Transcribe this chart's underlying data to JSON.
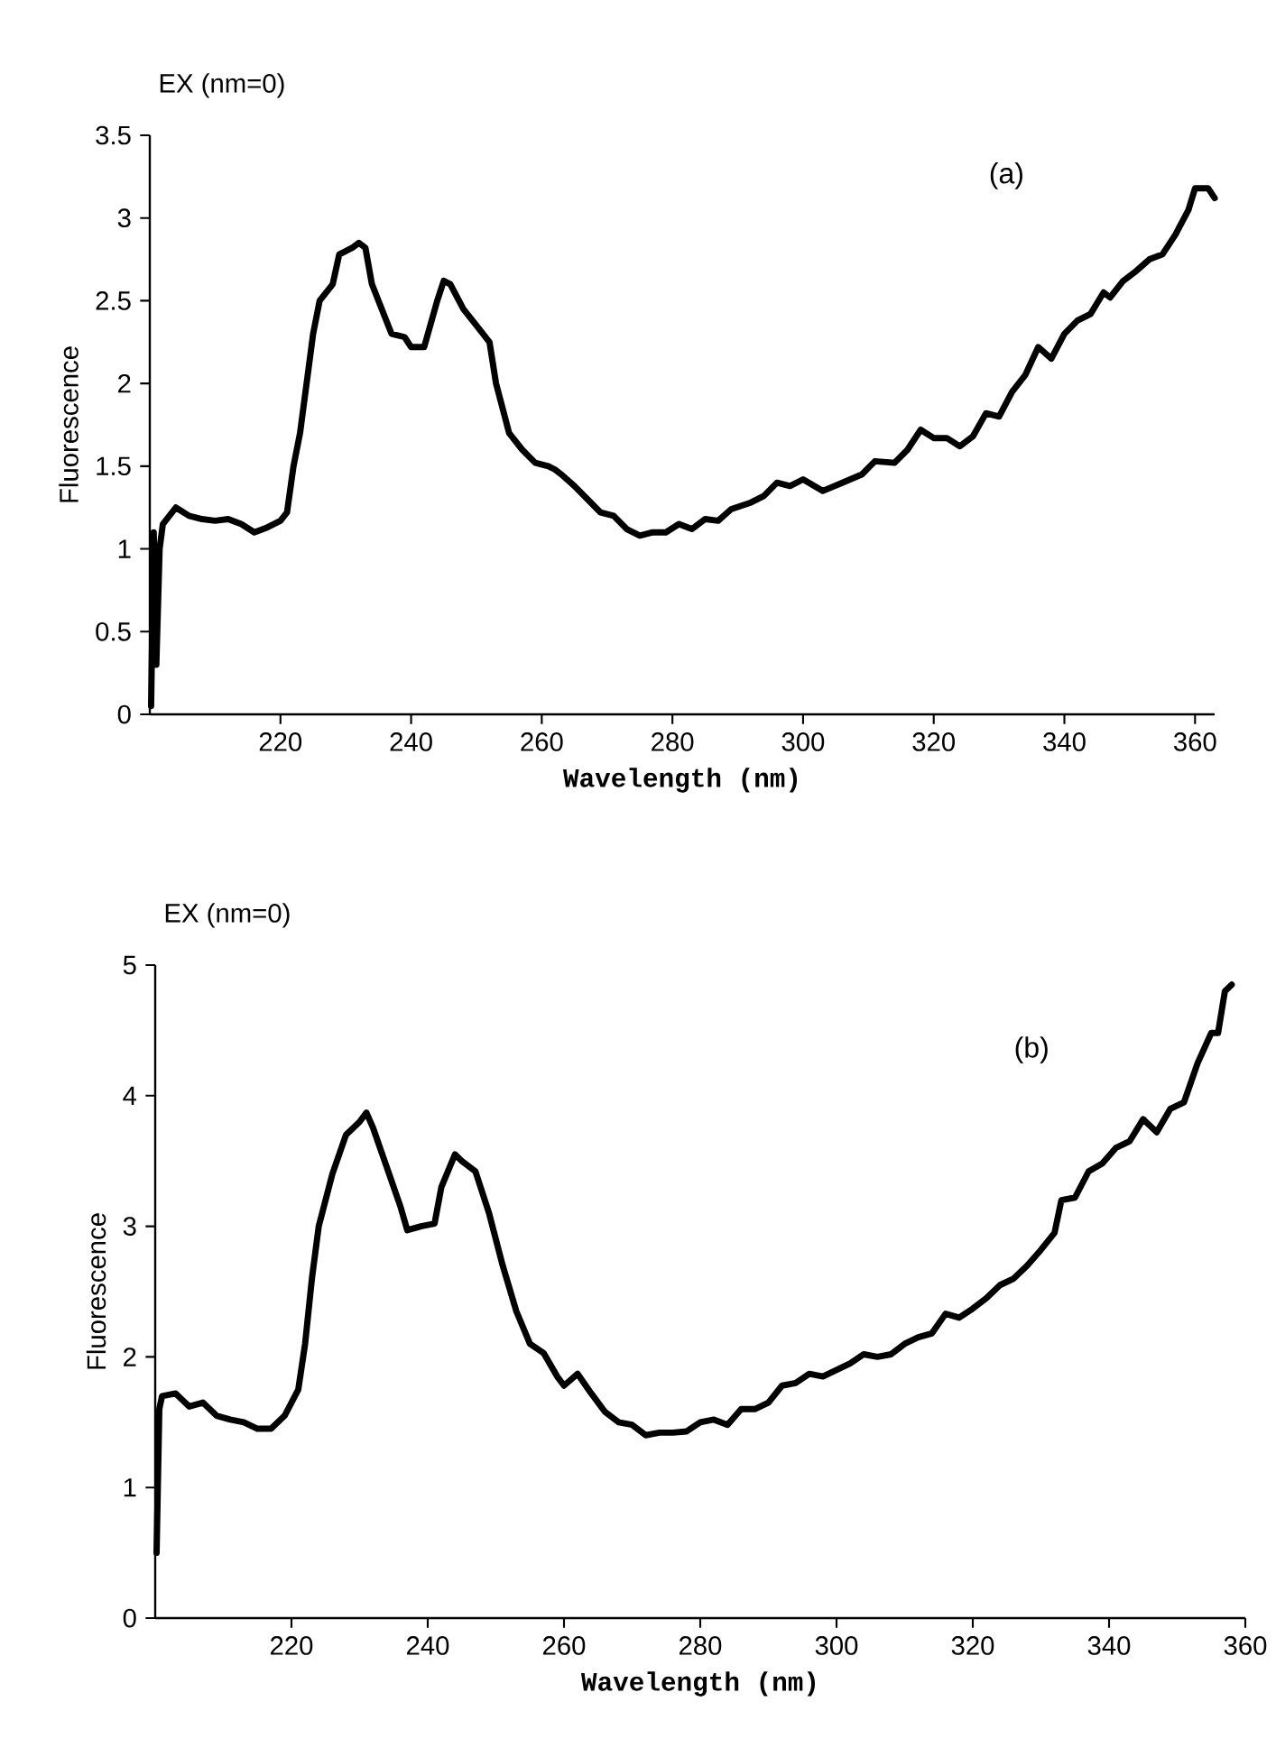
{
  "chart_data": [
    {
      "type": "line",
      "title": "EX (nm=0)",
      "xlabel": "Wavelength (nm)",
      "ylabel": "Fluorescence",
      "annotations": [
        "(a)"
      ],
      "x": [
        200.2,
        200.6,
        201,
        201.5,
        202,
        204,
        206,
        208,
        210,
        212,
        214,
        216,
        218,
        220,
        221,
        222,
        223,
        224,
        225,
        226,
        228,
        229,
        231,
        232,
        233,
        234,
        236,
        237,
        239,
        240,
        242,
        244,
        245,
        246,
        248,
        250,
        252,
        253,
        255,
        257,
        259,
        261,
        262,
        263,
        265,
        267,
        269,
        271,
        273,
        275,
        277,
        279,
        281,
        283,
        285,
        287,
        289,
        292,
        294,
        296,
        298,
        300,
        303,
        306,
        309,
        311,
        314,
        316,
        318,
        320,
        322,
        324,
        326,
        328,
        330,
        332,
        334,
        336,
        338,
        340,
        342,
        344,
        346,
        347,
        349,
        351,
        353,
        355,
        357,
        359,
        360,
        362,
        363
      ],
      "series": [
        {
          "color": "#000000",
          "values": [
            0.05,
            1.1,
            0.3,
            1.0,
            1.15,
            1.25,
            1.2,
            1.18,
            1.17,
            1.18,
            1.15,
            1.1,
            1.13,
            1.17,
            1.22,
            1.5,
            1.7,
            2.0,
            2.3,
            2.5,
            2.6,
            2.78,
            2.82,
            2.85,
            2.82,
            2.6,
            2.4,
            2.3,
            2.28,
            2.22,
            2.22,
            2.5,
            2.62,
            2.6,
            2.45,
            2.35,
            2.25,
            2.0,
            1.7,
            1.6,
            1.52,
            1.5,
            1.48,
            1.45,
            1.38,
            1.3,
            1.22,
            1.2,
            1.12,
            1.08,
            1.1,
            1.1,
            1.15,
            1.12,
            1.18,
            1.17,
            1.24,
            1.28,
            1.32,
            1.4,
            1.38,
            1.42,
            1.35,
            1.4,
            1.45,
            1.53,
            1.52,
            1.6,
            1.72,
            1.67,
            1.67,
            1.62,
            1.68,
            1.82,
            1.8,
            1.95,
            2.05,
            2.22,
            2.15,
            2.3,
            2.38,
            2.42,
            2.55,
            2.52,
            2.62,
            2.68,
            2.75,
            2.78,
            2.9,
            3.05,
            3.18,
            3.18,
            3.12
          ]
        }
      ],
      "xlim": [
        200,
        363
      ],
      "ylim": [
        0,
        3.5
      ],
      "xticks": [
        220,
        240,
        260,
        280,
        300,
        320,
        340,
        360
      ],
      "yticks": [
        0,
        0.5,
        1,
        1.5,
        2,
        2.5,
        3,
        3.5
      ]
    },
    {
      "type": "line",
      "title": "EX (nm=0)",
      "xlabel": "Wavelength (nm)",
      "ylabel": "Fluorescence",
      "annotations": [
        "(b)"
      ],
      "x": [
        200.2,
        200.6,
        201,
        203,
        205,
        207,
        209,
        211,
        213,
        215,
        217,
        219,
        221,
        222,
        223,
        224,
        226,
        228,
        230,
        231,
        232,
        234,
        236,
        237,
        239,
        241,
        242,
        244,
        245,
        247,
        249,
        251,
        253,
        255,
        257,
        259,
        260,
        262,
        264,
        266,
        268,
        270,
        272,
        274,
        276,
        278,
        280,
        282,
        284,
        286,
        288,
        290,
        292,
        294,
        296,
        298,
        300,
        302,
        304,
        306,
        308,
        310,
        312,
        314,
        316,
        318,
        320,
        322,
        324,
        326,
        328,
        330,
        332,
        333,
        335,
        337,
        339,
        341,
        343,
        345,
        347,
        349,
        351,
        353,
        355,
        356,
        357,
        358
      ],
      "series": [
        {
          "color": "#000000",
          "values": [
            0.5,
            1.6,
            1.7,
            1.72,
            1.62,
            1.65,
            1.55,
            1.52,
            1.5,
            1.45,
            1.45,
            1.55,
            1.75,
            2.1,
            2.6,
            3.0,
            3.4,
            3.7,
            3.8,
            3.87,
            3.75,
            3.45,
            3.15,
            2.97,
            3.0,
            3.02,
            3.3,
            3.55,
            3.5,
            3.42,
            3.1,
            2.7,
            2.35,
            2.1,
            2.03,
            1.85,
            1.78,
            1.87,
            1.72,
            1.58,
            1.5,
            1.48,
            1.4,
            1.42,
            1.42,
            1.43,
            1.5,
            1.52,
            1.48,
            1.6,
            1.6,
            1.65,
            1.78,
            1.8,
            1.87,
            1.85,
            1.9,
            1.95,
            2.02,
            2.0,
            2.02,
            2.1,
            2.15,
            2.18,
            2.33,
            2.3,
            2.37,
            2.45,
            2.55,
            2.6,
            2.7,
            2.82,
            2.95,
            3.2,
            3.22,
            3.42,
            3.48,
            3.6,
            3.65,
            3.82,
            3.72,
            3.9,
            3.95,
            4.25,
            4.48,
            4.48,
            4.8,
            4.85
          ]
        }
      ],
      "xlim": [
        200,
        360
      ],
      "ylim": [
        0,
        5
      ],
      "xticks": [
        220,
        240,
        260,
        280,
        300,
        320,
        340,
        360
      ],
      "yticks": [
        0,
        1,
        2,
        3,
        4,
        5
      ]
    }
  ]
}
